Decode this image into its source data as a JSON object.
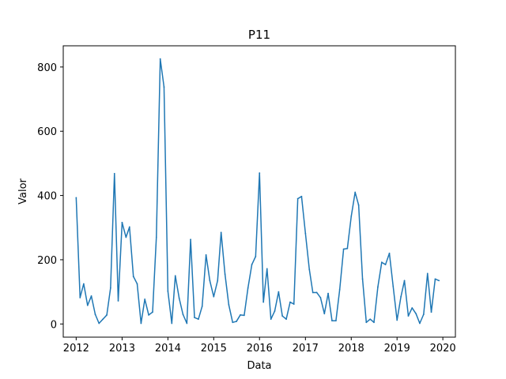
{
  "chart_data": {
    "type": "line",
    "title": "P11",
    "xlabel": "Data",
    "ylabel": "Valor",
    "color": "#1f77b4",
    "grid": false,
    "legend": false,
    "xlim": [
      "2011-09-20",
      "2020-04-10"
    ],
    "ylim": [
      -41,
      866
    ],
    "x_ticks": [
      "2012",
      "2013",
      "2014",
      "2015",
      "2016",
      "2017",
      "2018",
      "2019",
      "2020"
    ],
    "y_ticks": [
      0,
      200,
      400,
      600,
      800
    ],
    "series": [
      {
        "x": [
          "2012-01",
          "2012-02",
          "2012-03",
          "2012-04",
          "2012-05",
          "2012-06",
          "2012-07",
          "2012-08",
          "2012-09",
          "2012-10",
          "2012-11",
          "2012-12",
          "2013-01",
          "2013-02",
          "2013-03",
          "2013-04",
          "2013-05",
          "2013-06",
          "2013-07",
          "2013-08",
          "2013-09",
          "2013-10",
          "2013-11",
          "2013-12",
          "2014-01",
          "2014-02",
          "2014-03",
          "2014-04",
          "2014-05",
          "2014-06",
          "2014-07",
          "2014-08",
          "2014-09",
          "2014-10",
          "2014-11",
          "2014-12",
          "2015-01",
          "2015-02",
          "2015-03",
          "2015-04",
          "2015-05",
          "2015-06",
          "2015-07",
          "2015-08",
          "2015-09",
          "2015-10",
          "2015-11",
          "2015-12",
          "2016-01",
          "2016-02",
          "2016-03",
          "2016-04",
          "2016-05",
          "2016-06",
          "2016-07",
          "2016-08",
          "2016-09",
          "2016-10",
          "2016-11",
          "2016-12",
          "2017-01",
          "2017-02",
          "2017-03",
          "2017-04",
          "2017-05",
          "2017-06",
          "2017-07",
          "2017-08",
          "2017-09",
          "2017-10",
          "2017-11",
          "2017-12",
          "2018-01",
          "2018-02",
          "2018-03",
          "2018-04",
          "2018-05",
          "2018-06",
          "2018-07",
          "2018-08",
          "2018-09",
          "2018-10",
          "2018-11",
          "2018-12",
          "2019-01",
          "2019-02",
          "2019-03",
          "2019-04",
          "2019-05",
          "2019-06",
          "2019-07",
          "2019-08",
          "2019-09",
          "2019-10",
          "2019-11",
          "2019-12"
        ],
        "values": [
          393,
          82,
          125,
          58,
          87,
          30,
          2,
          15,
          28,
          112,
          468,
          72,
          316,
          270,
          302,
          148,
          125,
          2,
          77,
          28,
          37,
          270,
          825,
          738,
          102,
          2,
          150,
          80,
          30,
          2,
          263,
          20,
          15,
          55,
          215,
          135,
          85,
          135,
          285,
          155,
          60,
          5,
          8,
          28,
          27,
          112,
          185,
          210,
          470,
          68,
          172,
          15,
          40,
          100,
          25,
          15,
          68,
          62,
          390,
          397,
          282,
          170,
          98,
          98,
          82,
          32,
          95,
          10,
          10,
          107,
          233,
          235,
          335,
          410,
          370,
          140,
          5,
          15,
          5,
          115,
          192,
          185,
          220,
          117,
          12,
          85,
          135,
          25,
          50,
          32,
          2,
          30,
          157,
          37,
          140,
          135
        ]
      }
    ]
  }
}
